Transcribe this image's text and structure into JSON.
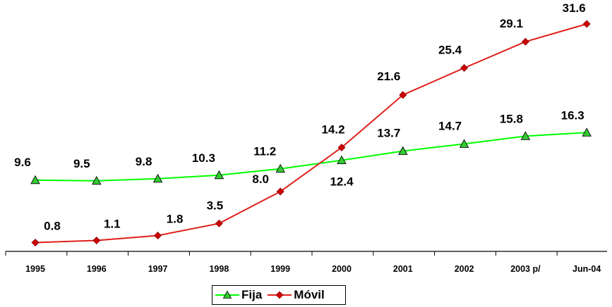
{
  "chart_data": {
    "type": "line",
    "categories": [
      "1995",
      "1996",
      "1997",
      "1998",
      "1999",
      "2000",
      "2001",
      "2002",
      "2003 p/",
      "Jun-04"
    ],
    "series": [
      {
        "name": "Fija",
        "color": "#00ff00",
        "marker": "triangle",
        "marker_fill": "#33cc33",
        "values": [
          9.6,
          9.5,
          9.8,
          10.3,
          11.2,
          12.4,
          13.7,
          14.7,
          15.8,
          16.3
        ],
        "labels": [
          "9.6",
          "9.5",
          "9.8",
          "10.3",
          "11.2",
          "12.4",
          "13.7",
          "14.7",
          "15.8",
          "16.3"
        ]
      },
      {
        "name": "Móvil",
        "color": "#e0201c",
        "marker": "diamond",
        "marker_fill": "#cc0000",
        "values": [
          0.8,
          1.1,
          1.8,
          3.5,
          8.0,
          14.2,
          21.6,
          25.4,
          29.1,
          31.6
        ],
        "labels": [
          "0.8",
          "1.1",
          "1.8",
          "3.5",
          "8.0",
          "14.2",
          "21.6",
          "25.4",
          "29.1",
          "31.6"
        ]
      }
    ],
    "title": "",
    "xlabel": "",
    "ylabel": "",
    "ylim": [
      0,
      32
    ],
    "grid": false,
    "legend": "bottom-center"
  }
}
